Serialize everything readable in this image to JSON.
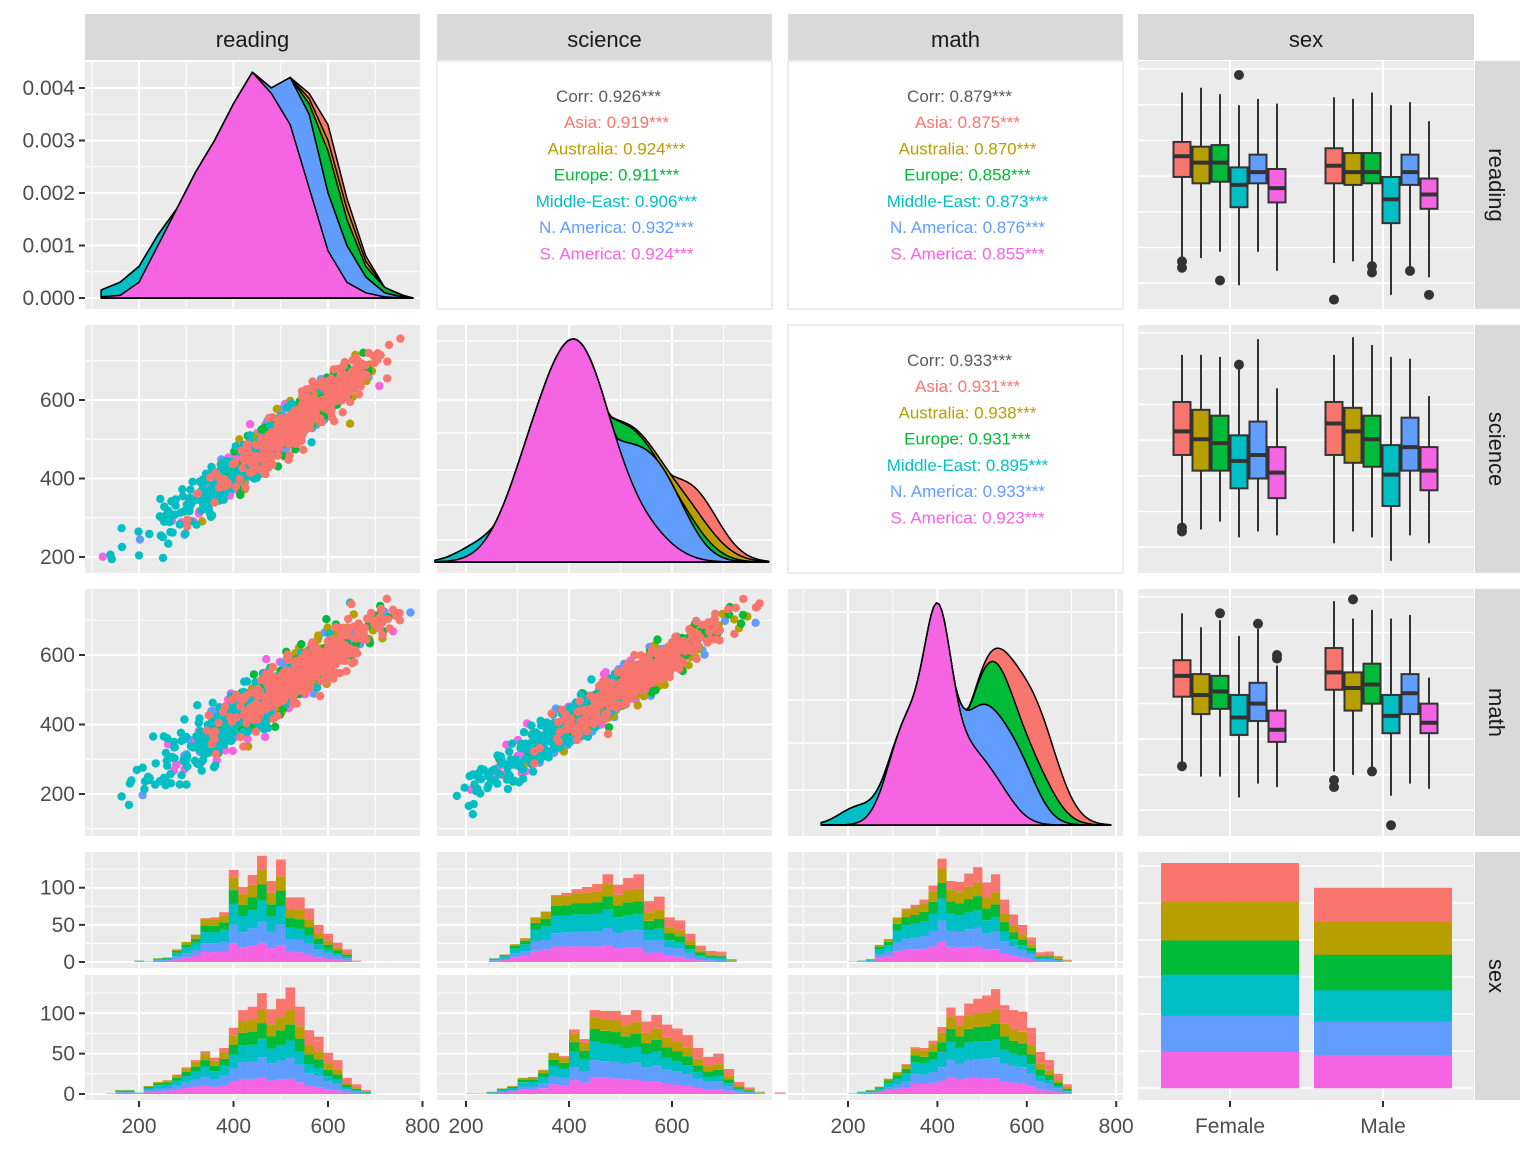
{
  "chart_data": {
    "type": "pairs-matrix",
    "title": "",
    "variables": [
      "reading",
      "science",
      "math",
      "sex"
    ],
    "groups": [
      "Asia",
      "Australia",
      "Europe",
      "Middle-East",
      "N. America",
      "S. America"
    ],
    "group_colors": {
      "Asia": "#F8766D",
      "Australia": "#B79F00",
      "Europe": "#00BA38",
      "Middle-East": "#00BFC4",
      "N. America": "#619CFF",
      "S. America": "#F564E3"
    },
    "column_strips": [
      "reading",
      "science",
      "math",
      "sex"
    ],
    "row_strips": [
      "reading",
      "science",
      "math",
      "sex"
    ],
    "axes": {
      "reading_x": {
        "ticks": [
          200,
          400,
          600,
          800
        ],
        "range": [
          110,
          790
        ]
      },
      "science_x": {
        "ticks": [
          200,
          400,
          600
        ],
        "tick_labels": [
          "200",
          "400",
          "600"
        ],
        "range": [
          145,
          800
        ]
      },
      "math_x": {
        "ticks": [
          200,
          400,
          600,
          800
        ],
        "range": [
          95,
          800
        ]
      },
      "sex_x": {
        "ticks": [
          "Female",
          "Male"
        ]
      },
      "density_y": {
        "ticks": [
          "0.000",
          "0.001",
          "0.002",
          "0.003",
          "0.004"
        ],
        "range": [
          0,
          0.0046
        ]
      },
      "science_y": {
        "ticks": [
          200,
          400,
          600
        ],
        "range": [
          170,
          780
        ]
      },
      "math_y": {
        "ticks": [
          200,
          400,
          600
        ],
        "range": [
          90,
          790
        ]
      },
      "count_y": {
        "ticks": [
          0,
          50,
          100
        ],
        "range": [
          0,
          150
        ]
      }
    },
    "correlations": [
      {
        "pair": "reading-science",
        "overall": "Corr: 0.926***",
        "by_group": [
          {
            "group": "Asia",
            "text": "Asia: 0.919***"
          },
          {
            "group": "Australia",
            "text": "Australia: 0.924***"
          },
          {
            "group": "Europe",
            "text": "Europe: 0.911***"
          },
          {
            "group": "Middle-East",
            "text": "Middle-East: 0.906***"
          },
          {
            "group": "N. America",
            "text": "N. America: 0.932***"
          },
          {
            "group": "S. America",
            "text": "S. America: 0.924***"
          }
        ]
      },
      {
        "pair": "reading-math",
        "overall": "Corr: 0.879***",
        "by_group": [
          {
            "group": "Asia",
            "text": "Asia: 0.875***"
          },
          {
            "group": "Australia",
            "text": "Australia: 0.870***"
          },
          {
            "group": "Europe",
            "text": "Europe: 0.858***"
          },
          {
            "group": "Middle-East",
            "text": "Middle-East: 0.873***"
          },
          {
            "group": "N. America",
            "text": "N. America: 0.876***"
          },
          {
            "group": "S. America",
            "text": "S. America: 0.855***"
          }
        ]
      },
      {
        "pair": "science-math",
        "overall": "Corr: 0.933***",
        "by_group": [
          {
            "group": "Asia",
            "text": "Asia: 0.931***"
          },
          {
            "group": "Australia",
            "text": "Australia: 0.938***"
          },
          {
            "group": "Europe",
            "text": "Europe: 0.931***"
          },
          {
            "group": "Middle-East",
            "text": "Middle-East: 0.895***"
          },
          {
            "group": "N. America",
            "text": "N. America: 0.933***"
          },
          {
            "group": "S. America",
            "text": "S. America: 0.923***"
          }
        ]
      }
    ],
    "densities": {
      "reading": {
        "x": [
          120,
          160,
          200,
          240,
          280,
          320,
          360,
          400,
          440,
          480,
          520,
          560,
          600,
          640,
          680,
          720,
          760,
          780
        ],
        "stacked_top": {
          "S. America": [
            2e-05,
            5e-05,
            0.0003,
            0.001,
            0.0017,
            0.0024,
            0.003,
            0.0037,
            0.0043,
            0.0039,
            0.0033,
            0.0021,
            0.0009,
            0.0003,
            0.0001,
            2e-05,
            0.0,
            0.0
          ],
          "N. America": [
            2e-05,
            5e-05,
            0.0003,
            0.001,
            0.0017,
            0.0024,
            0.003,
            0.0037,
            0.0043,
            0.004,
            0.0042,
            0.0035,
            0.002,
            0.001,
            0.0004,
            0.0001,
            1e-05,
            0.0
          ],
          "Middle-East": [
            0.00015,
            0.0003,
            0.0006,
            0.0012,
            0.0017,
            0.0024,
            0.003,
            0.0037,
            0.0043,
            0.004,
            0.0042,
            0.0035,
            0.002,
            0.001,
            0.0004,
            0.0001,
            1e-05,
            0.0
          ],
          "Europe": [
            0.00015,
            0.0003,
            0.0006,
            0.0012,
            0.0017,
            0.0024,
            0.003,
            0.0037,
            0.0043,
            0.004,
            0.0042,
            0.0037,
            0.0028,
            0.0015,
            0.0006,
            0.0002,
            3e-05,
            0.0
          ],
          "Australia": [
            0.00015,
            0.0003,
            0.0006,
            0.0012,
            0.0017,
            0.0024,
            0.003,
            0.0037,
            0.0043,
            0.004,
            0.0042,
            0.0038,
            0.003,
            0.0017,
            0.0007,
            0.0002,
            4e-05,
            0.0
          ],
          "Asia": [
            0.00015,
            0.0003,
            0.0006,
            0.0012,
            0.0017,
            0.0024,
            0.003,
            0.0037,
            0.0043,
            0.004,
            0.0042,
            0.0039,
            0.0033,
            0.0019,
            0.0008,
            0.0002,
            5e-05,
            0.0
          ]
        }
      }
    },
    "count_by_sex": {
      "categories": [
        "Female",
        "Male"
      ],
      "series": [
        {
          "name": "S. America",
          "values": [
            0.16,
            0.16
          ]
        },
        {
          "name": "N. America",
          "values": [
            0.16,
            0.16
          ]
        },
        {
          "name": "Middle-East",
          "values": [
            0.18,
            0.15
          ]
        },
        {
          "name": "Europe",
          "values": [
            0.15,
            0.17
          ]
        },
        {
          "name": "Australia",
          "values": [
            0.17,
            0.16
          ]
        },
        {
          "name": "Asia",
          "values": [
            0.17,
            0.16
          ]
        }
      ]
    },
    "boxplots": {
      "reading": {
        "Female": [
          {
            "group": "Asia",
            "low": 230,
            "q1": 480,
            "med": 545,
            "q3": 590,
            "high": 745,
            "outliers": [
              195,
              215
            ]
          },
          {
            "group": "Australia",
            "low": 225,
            "q1": 460,
            "med": 525,
            "q3": 575,
            "high": 760
          },
          {
            "group": "Europe",
            "low": 245,
            "q1": 465,
            "med": 525,
            "q3": 580,
            "high": 740,
            "outliers": [
              155
            ]
          },
          {
            "group": "Middle-East",
            "low": 140,
            "q1": 385,
            "med": 455,
            "q3": 510,
            "high": 705,
            "outliers": [
              800
            ]
          },
          {
            "group": "N. America",
            "low": 245,
            "q1": 460,
            "med": 495,
            "q3": 550,
            "high": 725
          },
          {
            "group": "S. America",
            "low": 185,
            "q1": 400,
            "med": 445,
            "q3": 505,
            "high": 710
          }
        ],
        "Male": [
          {
            "group": "Asia",
            "low": 210,
            "q1": 460,
            "med": 515,
            "q3": 570,
            "high": 730,
            "outliers": [
              95
            ]
          },
          {
            "group": "Australia",
            "low": 215,
            "q1": 455,
            "med": 495,
            "q3": 555,
            "high": 725
          },
          {
            "group": "Europe",
            "low": 185,
            "q1": 460,
            "med": 495,
            "q3": 555,
            "high": 745,
            "outliers": [
              180,
              200
            ]
          },
          {
            "group": "Middle-East",
            "low": 110,
            "q1": 335,
            "med": 410,
            "q3": 480,
            "high": 705
          },
          {
            "group": "N. America",
            "low": 200,
            "q1": 455,
            "med": 495,
            "q3": 550,
            "high": 715,
            "outliers": [
              185
            ]
          },
          {
            "group": "S. America",
            "low": 165,
            "q1": 380,
            "med": 425,
            "q3": 475,
            "high": 655,
            "outliers": [
              110
            ]
          }
        ]
      },
      "science": {
        "Female": [
          {
            "group": "Asia",
            "low": 265,
            "q1": 460,
            "med": 520,
            "q3": 595,
            "high": 715,
            "outliers": [
              265,
              275
            ]
          },
          {
            "group": "Australia",
            "low": 270,
            "q1": 420,
            "med": 500,
            "q3": 575,
            "high": 715
          },
          {
            "group": "Europe",
            "low": 290,
            "q1": 420,
            "med": 490,
            "q3": 560,
            "high": 710
          },
          {
            "group": "Middle-East",
            "low": 250,
            "q1": 375,
            "med": 445,
            "q3": 510,
            "high": 690,
            "outliers": [
              690
            ]
          },
          {
            "group": "N. America",
            "low": 265,
            "q1": 400,
            "med": 460,
            "q3": 545,
            "high": 755
          },
          {
            "group": "S. America",
            "low": 255,
            "q1": 350,
            "med": 415,
            "q3": 480,
            "high": 630
          }
        ],
        "Male": [
          {
            "group": "Asia",
            "low": 235,
            "q1": 460,
            "med": 540,
            "q3": 595,
            "high": 715
          },
          {
            "group": "Australia",
            "low": 265,
            "q1": 440,
            "med": 520,
            "q3": 580,
            "high": 760
          },
          {
            "group": "Europe",
            "low": 250,
            "q1": 430,
            "med": 500,
            "q3": 560,
            "high": 740
          },
          {
            "group": "Middle-East",
            "low": 190,
            "q1": 330,
            "med": 410,
            "q3": 485,
            "high": 710
          },
          {
            "group": "N. America",
            "low": 255,
            "q1": 420,
            "med": 480,
            "q3": 555,
            "high": 705
          },
          {
            "group": "S. America",
            "low": 235,
            "q1": 370,
            "med": 420,
            "q3": 480,
            "high": 610
          }
        ]
      },
      "math": {
        "Female": [
          {
            "group": "Asia",
            "low": 290,
            "q1": 480,
            "med": 540,
            "q3": 585,
            "high": 720,
            "outliers": [
              280
            ]
          },
          {
            "group": "Australia",
            "low": 250,
            "q1": 430,
            "med": 485,
            "q3": 545,
            "high": 680
          },
          {
            "group": "Europe",
            "low": 250,
            "q1": 445,
            "med": 495,
            "q3": 540,
            "high": 700,
            "outliers": [
              720
            ]
          },
          {
            "group": "Middle-East",
            "low": 190,
            "q1": 370,
            "med": 420,
            "q3": 485,
            "high": 655
          },
          {
            "group": "N. America",
            "low": 230,
            "q1": 410,
            "med": 460,
            "q3": 520,
            "high": 675,
            "outliers": [
              690
            ]
          },
          {
            "group": "S. America",
            "low": 220,
            "q1": 350,
            "med": 385,
            "q3": 440,
            "high": 570,
            "outliers": [
              590,
              600
            ]
          }
        ],
        "Male": [
          {
            "group": "Asia",
            "low": 265,
            "q1": 500,
            "med": 550,
            "q3": 620,
            "high": 755,
            "outliers": [
              220,
              240
            ]
          },
          {
            "group": "Australia",
            "low": 255,
            "q1": 440,
            "med": 505,
            "q3": 550,
            "high": 705,
            "outliers": [
              760
            ]
          },
          {
            "group": "Europe",
            "low": 270,
            "q1": 460,
            "med": 515,
            "q3": 575,
            "high": 730,
            "outliers": [
              265
            ]
          },
          {
            "group": "Middle-East",
            "low": 195,
            "q1": 375,
            "med": 425,
            "q3": 485,
            "high": 705,
            "outliers": [
              110
            ]
          },
          {
            "group": "N. America",
            "low": 230,
            "q1": 430,
            "med": 490,
            "q3": 545,
            "high": 715
          },
          {
            "group": "S. America",
            "low": 215,
            "q1": 375,
            "med": 405,
            "q3": 460,
            "high": 535
          }
        ]
      }
    },
    "histograms": {
      "bins_note": "stacked counts by group, bin width ~20",
      "reading": {
        "Female": {
          "x0": 190,
          "dx": 20,
          "totals": [
            2,
            1,
            5,
            6,
            17,
            27,
            37,
            59,
            60,
            67,
            124,
            101,
            117,
            143,
            109,
            138,
            87,
            87,
            72,
            50,
            38,
            26,
            17,
            2,
            0,
            0,
            1
          ]
        },
        "Male": {
          "x0": 130,
          "dx": 20,
          "totals": [
            1,
            5,
            5,
            2,
            10,
            15,
            17,
            24,
            33,
            42,
            53,
            45,
            57,
            82,
            104,
            108,
            125,
            105,
            118,
            132,
            108,
            79,
            71,
            51,
            42,
            20,
            12,
            5,
            1
          ]
        }
      },
      "science": {
        "Female": {
          "x0": 245,
          "dx": 20,
          "totals": [
            5,
            10,
            24,
            32,
            60,
            68,
            90,
            93,
            98,
            101,
            105,
            118,
            104,
            113,
            118,
            82,
            88,
            60,
            56,
            38,
            22,
            15,
            14,
            4,
            1
          ]
        },
        "Male": {
          "x0": 200,
          "dx": 20,
          "totals": [
            1,
            1,
            3,
            7,
            10,
            20,
            21,
            30,
            51,
            47,
            80,
            68,
            104,
            103,
            103,
            98,
            104,
            90,
            98,
            86,
            81,
            73,
            57,
            46,
            50,
            31,
            15,
            8,
            3,
            1,
            2
          ]
        }
      },
      "math": {
        "Female": {
          "x0": 200,
          "dx": 20,
          "totals": [
            1,
            2,
            4,
            23,
            31,
            60,
            72,
            77,
            84,
            103,
            139,
            109,
            108,
            119,
            128,
            107,
            118,
            84,
            64,
            50,
            33,
            13,
            14,
            8,
            3
          ]
        },
        "Male": {
          "x0": 200,
          "dx": 20,
          "totals": [
            1,
            3,
            5,
            9,
            19,
            27,
            37,
            58,
            57,
            66,
            83,
            107,
            97,
            112,
            118,
            122,
            130,
            110,
            104,
            102,
            82,
            52,
            42,
            25,
            12,
            1
          ]
        }
      }
    }
  }
}
